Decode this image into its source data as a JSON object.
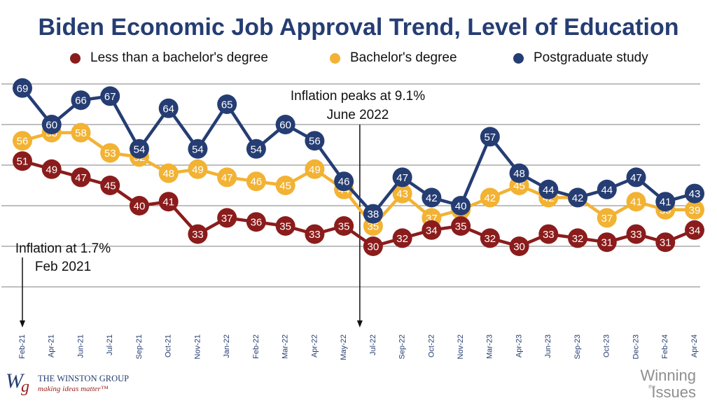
{
  "chart_data": {
    "type": "line",
    "title": "Biden Economic Job Approval Trend, Level of Education",
    "categories": [
      "Feb-21",
      "Apr-21",
      "Jun-21",
      "Jul-21",
      "Sep-21",
      "Oct-21",
      "Nov-21",
      "Jan-22",
      "Feb-22",
      "Mar-22",
      "Apr-22",
      "May-22",
      "Jul-22",
      "Sep-22",
      "Oct-22",
      "Nov-22",
      "Mar-23",
      "Apr-23",
      "Jun-23",
      "Sep-23",
      "Oct-23",
      "Dec-23",
      "Feb-24",
      "Apr-24"
    ],
    "series": [
      {
        "name": "Less than a bachelor's degree",
        "color": "#8b1c1c",
        "values": [
          51,
          49,
          47,
          45,
          40,
          41,
          33,
          37,
          36,
          35,
          33,
          35,
          30,
          32,
          34,
          35,
          32,
          30,
          33,
          32,
          31,
          33,
          31,
          34
        ]
      },
      {
        "name": "Bachelor's degree",
        "color": "#f2b233",
        "values": [
          56,
          58,
          58,
          53,
          52,
          48,
          49,
          47,
          46,
          45,
          49,
          44,
          35,
          43,
          37,
          39,
          42,
          45,
          42,
          42,
          37,
          41,
          39,
          39
        ]
      },
      {
        "name": "Postgraduate study",
        "color": "#253d73",
        "values": [
          69,
          60,
          66,
          67,
          54,
          64,
          54,
          65,
          54,
          60,
          56,
          46,
          38,
          47,
          42,
          40,
          57,
          48,
          44,
          42,
          44,
          47,
          41,
          43
        ]
      }
    ],
    "ylim": [
      10,
      70
    ],
    "gridlines": [
      20,
      30,
      40,
      50,
      60,
      70
    ],
    "grid": true,
    "legend": "top",
    "annotations": [
      {
        "line1": "Inflation at 1.7%",
        "line2": "Feb 2021",
        "at_category": "Feb-21"
      },
      {
        "line1": "Inflation peaks at 9.1%",
        "line2": "June 2022",
        "at_category": "Jul-22"
      }
    ]
  },
  "footer": {
    "logo_mark_w": "W",
    "logo_mark_g": "g",
    "logo_name": "THE WINSTON GROUP",
    "logo_tagline": "making ideas matter™",
    "brand_top": "Winning",
    "brand_mid": "the",
    "brand_bottom": "Issues"
  }
}
